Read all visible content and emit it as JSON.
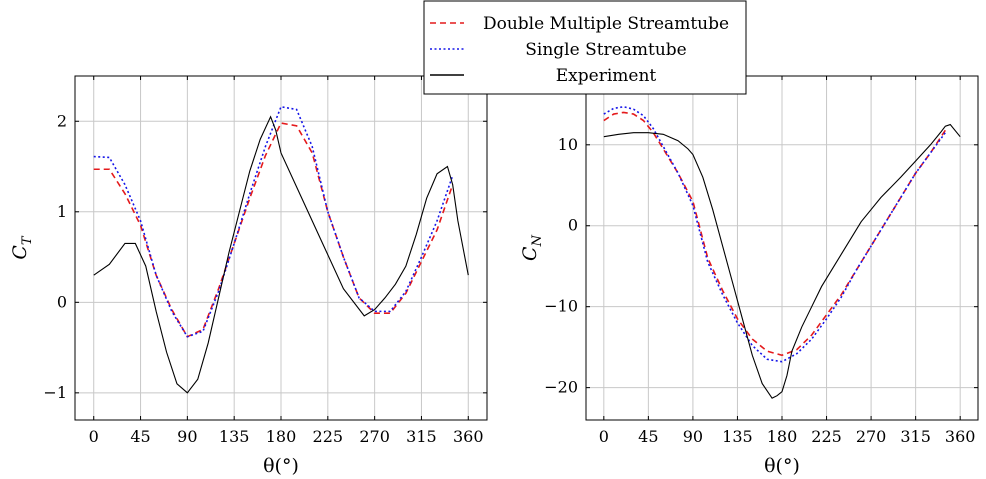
{
  "colors": {
    "dms": "#e41a1c",
    "ss": "#1515e8",
    "experiment": "#000000",
    "grid": "#c8c8c8"
  },
  "legend": {
    "entries": [
      {
        "series": "dms",
        "label": "Double Multiple Streamtube",
        "dash": "6,4"
      },
      {
        "series": "ss",
        "label": "Single Streamtube",
        "dash": "2,2.5"
      },
      {
        "series": "experiment",
        "label": "Experiment",
        "dash": ""
      }
    ]
  },
  "chart_data": [
    {
      "type": "line",
      "id": "ct",
      "xlabel": "θ(°)",
      "ylabel_main": "C",
      "ylabel_sub": "T",
      "xlim": [
        -18,
        378
      ],
      "ylim": [
        -1.3,
        2.5
      ],
      "xticks": [
        0,
        45,
        90,
        135,
        180,
        225,
        270,
        315,
        360
      ],
      "yticks": [
        -1,
        0,
        1,
        2
      ],
      "series": [
        {
          "key": "dms",
          "name": "Double Multiple Streamtube",
          "x": [
            0,
            15,
            30,
            45,
            60,
            75,
            90,
            105,
            120,
            135,
            150,
            165,
            180,
            195,
            210,
            225,
            240,
            255,
            270,
            285,
            300,
            315,
            330,
            345
          ],
          "y": [
            1.47,
            1.47,
            1.2,
            0.85,
            0.3,
            -0.08,
            -0.38,
            -0.3,
            0.15,
            0.65,
            1.15,
            1.62,
            1.98,
            1.95,
            1.65,
            1.0,
            0.5,
            0.05,
            -0.12,
            -0.12,
            0.1,
            0.45,
            0.8,
            1.3
          ]
        },
        {
          "key": "ss",
          "name": "Single Streamtube",
          "x": [
            0,
            15,
            30,
            45,
            60,
            75,
            90,
            105,
            120,
            135,
            150,
            165,
            180,
            195,
            210,
            225,
            240,
            255,
            270,
            285,
            300,
            315,
            330,
            345
          ],
          "y": [
            1.61,
            1.6,
            1.3,
            0.9,
            0.3,
            -0.1,
            -0.38,
            -0.32,
            0.12,
            0.65,
            1.2,
            1.72,
            2.16,
            2.13,
            1.72,
            1.0,
            0.5,
            0.05,
            -0.1,
            -0.1,
            0.12,
            0.5,
            0.9,
            1.4
          ]
        },
        {
          "key": "experiment",
          "name": "Experiment",
          "x": [
            0,
            15,
            30,
            40,
            50,
            60,
            70,
            80,
            90,
            100,
            110,
            120,
            130,
            140,
            150,
            160,
            170,
            175,
            180,
            200,
            220,
            240,
            260,
            270,
            280,
            290,
            300,
            310,
            320,
            330,
            340,
            345,
            350,
            360
          ],
          "y": [
            0.3,
            0.42,
            0.65,
            0.65,
            0.4,
            -0.1,
            -0.55,
            -0.9,
            -1.0,
            -0.85,
            -0.45,
            0.05,
            0.55,
            1.0,
            1.45,
            1.8,
            2.05,
            1.9,
            1.65,
            1.15,
            0.65,
            0.15,
            -0.15,
            -0.08,
            0.05,
            0.2,
            0.4,
            0.75,
            1.15,
            1.42,
            1.5,
            1.3,
            0.9,
            0.3
          ]
        }
      ]
    },
    {
      "type": "line",
      "id": "cn",
      "xlabel": "θ(°)",
      "ylabel_main": "C",
      "ylabel_sub": "N",
      "xlim": [
        -18,
        378
      ],
      "ylim": [
        -24,
        18.5
      ],
      "xticks": [
        0,
        45,
        90,
        135,
        180,
        225,
        270,
        315,
        360
      ],
      "yticks": [
        -20,
        -10,
        0,
        10
      ],
      "series": [
        {
          "key": "dms",
          "name": "Double Multiple Streamtube",
          "x": [
            0,
            10,
            20,
            30,
            40,
            50,
            60,
            75,
            90,
            105,
            120,
            135,
            150,
            165,
            180,
            195,
            210,
            225,
            240,
            255,
            270,
            285,
            300,
            315,
            330,
            345
          ],
          "y": [
            13.0,
            13.8,
            14.0,
            13.8,
            13.0,
            11.5,
            9.5,
            6.5,
            3.0,
            -4.0,
            -8.0,
            -11.5,
            -14.0,
            -15.5,
            -16.0,
            -15.3,
            -13.5,
            -11.0,
            -8.5,
            -5.5,
            -2.5,
            0.5,
            3.5,
            6.5,
            9.0,
            11.8
          ]
        },
        {
          "key": "ss",
          "name": "Single Streamtube",
          "x": [
            0,
            10,
            20,
            30,
            40,
            50,
            60,
            75,
            90,
            105,
            120,
            135,
            150,
            165,
            180,
            195,
            210,
            225,
            240,
            255,
            270,
            285,
            300,
            315,
            330,
            345
          ],
          "y": [
            13.8,
            14.5,
            14.7,
            14.4,
            13.6,
            12.0,
            9.8,
            6.5,
            2.5,
            -4.5,
            -8.5,
            -12.0,
            -14.8,
            -16.5,
            -16.8,
            -15.8,
            -14.0,
            -11.5,
            -8.8,
            -5.5,
            -2.5,
            0.5,
            3.5,
            6.5,
            9.0,
            11.5
          ]
        },
        {
          "key": "experiment",
          "name": "Experiment",
          "x": [
            0,
            15,
            30,
            45,
            60,
            75,
            85,
            90,
            100,
            110,
            120,
            130,
            140,
            150,
            160,
            170,
            175,
            180,
            185,
            190,
            200,
            210,
            220,
            240,
            260,
            270,
            280,
            300,
            315,
            330,
            340,
            345,
            350,
            360
          ],
          "y": [
            11.0,
            11.3,
            11.5,
            11.5,
            11.3,
            10.5,
            9.5,
            8.8,
            6.0,
            2.0,
            -2.5,
            -7.0,
            -11.5,
            -16.0,
            -19.5,
            -21.3,
            -21.0,
            -20.5,
            -18.5,
            -15.5,
            -12.5,
            -10.0,
            -7.5,
            -3.5,
            0.5,
            2.0,
            3.5,
            6.0,
            8.0,
            10.0,
            11.5,
            12.3,
            12.5,
            11.0
          ]
        }
      ]
    }
  ]
}
